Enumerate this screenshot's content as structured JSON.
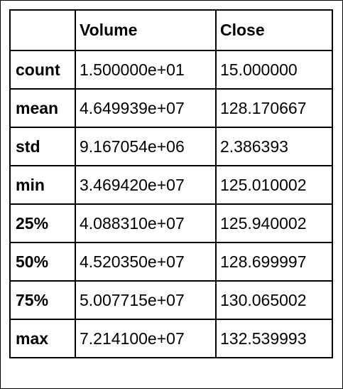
{
  "table": {
    "columns": [
      "",
      "Volume",
      "Close"
    ],
    "rows": [
      {
        "label": "count",
        "volume": "1.500000e+01",
        "close": "15.000000"
      },
      {
        "label": "mean",
        "volume": "4.649939e+07",
        "close": "128.170667"
      },
      {
        "label": "std",
        "volume": "9.167054e+06",
        "close": "2.386393"
      },
      {
        "label": "min",
        "volume": "3.469420e+07",
        "close": "125.010002"
      },
      {
        "label": "25%",
        "volume": "4.088310e+07",
        "close": "125.940002"
      },
      {
        "label": "50%",
        "volume": "4.520350e+07",
        "close": "128.699997"
      },
      {
        "label": "75%",
        "volume": "5.007715e+07",
        "close": "130.065002"
      },
      {
        "label": "max",
        "volume": "7.214100e+07",
        "close": "132.539993"
      }
    ]
  }
}
